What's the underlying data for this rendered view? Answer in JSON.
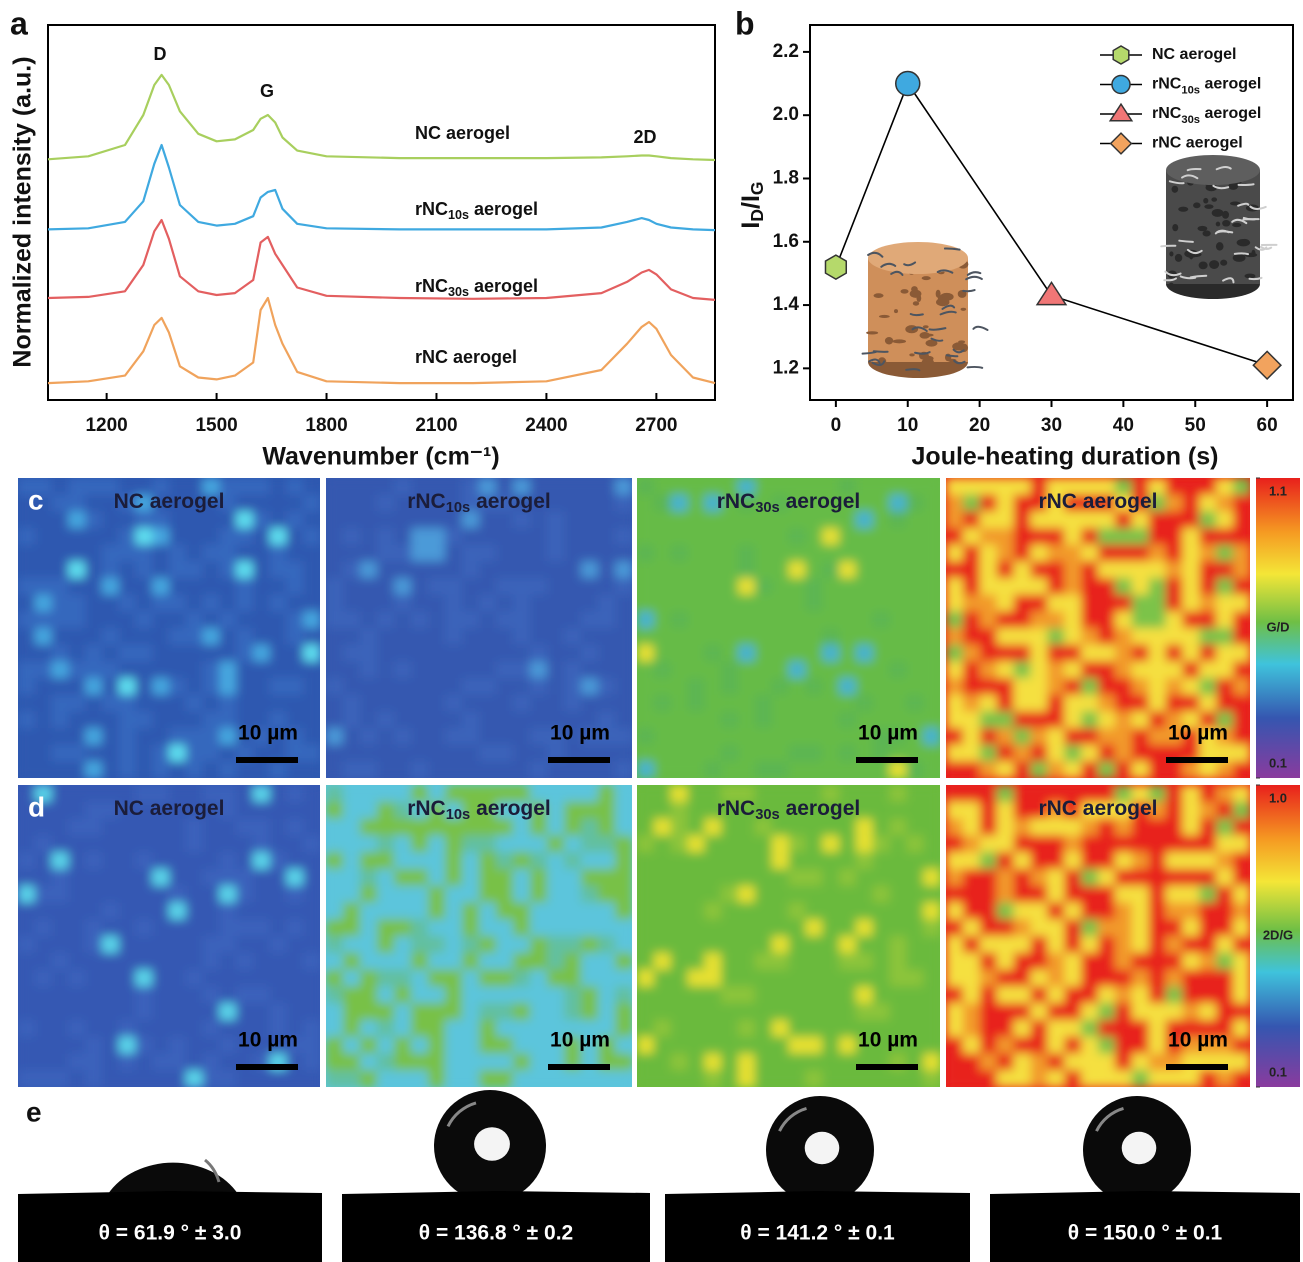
{
  "chart_data": [
    {
      "type": "line",
      "label": "a",
      "x_label": "Wavenumber (cm⁻¹)",
      "y_label": "Normalized intensity (a.u.)",
      "x": [
        1040,
        1150,
        1250,
        1300,
        1330,
        1350,
        1370,
        1400,
        1450,
        1500,
        1550,
        1600,
        1620,
        1640,
        1660,
        1680,
        1720,
        1800,
        2000,
        2200,
        2400,
        2550,
        2620,
        2660,
        2680,
        2700,
        2740,
        2800,
        2860
      ],
      "series": [
        {
          "name": "NC aerogel",
          "color": "#a8cf5e",
          "values": [
            6.42,
            6.5,
            6.8,
            7.6,
            8.4,
            8.67,
            8.4,
            7.7,
            7.1,
            6.9,
            6.95,
            7.2,
            7.5,
            7.6,
            7.4,
            7.0,
            6.65,
            6.5,
            6.45,
            6.45,
            6.45,
            6.47,
            6.5,
            6.52,
            6.52,
            6.5,
            6.45,
            6.42,
            6.4
          ]
        },
        {
          "name": "rNC10s aerogel",
          "color": "#3fa9e0",
          "values": [
            4.55,
            4.58,
            4.75,
            5.3,
            6.3,
            6.8,
            6.2,
            5.2,
            4.75,
            4.65,
            4.7,
            4.9,
            5.4,
            5.55,
            5.6,
            5.1,
            4.7,
            4.58,
            4.55,
            4.55,
            4.55,
            4.6,
            4.75,
            4.85,
            4.8,
            4.7,
            4.6,
            4.55,
            4.53
          ]
        },
        {
          "name": "rNC30s aerogel",
          "color": "#e35f60",
          "values": [
            2.72,
            2.75,
            2.9,
            3.6,
            4.5,
            4.8,
            4.3,
            3.3,
            2.9,
            2.8,
            2.85,
            3.2,
            4.2,
            4.35,
            3.9,
            3.6,
            3.0,
            2.78,
            2.72,
            2.7,
            2.72,
            2.85,
            3.15,
            3.4,
            3.47,
            3.35,
            2.95,
            2.72,
            2.67
          ]
        },
        {
          "name": "rNC aerogel",
          "color": "#f0a35c",
          "values": [
            0.45,
            0.5,
            0.65,
            1.3,
            2.0,
            2.19,
            1.8,
            0.9,
            0.6,
            0.55,
            0.65,
            1.0,
            2.4,
            2.72,
            2.0,
            1.5,
            0.75,
            0.5,
            0.45,
            0.45,
            0.5,
            0.8,
            1.5,
            1.95,
            2.08,
            1.9,
            1.2,
            0.6,
            0.45
          ]
        }
      ],
      "annotations": [
        "D",
        "G",
        "2D"
      ],
      "xlim": [
        1040,
        2860
      ],
      "ylim": [
        0,
        10
      ],
      "xticks": [
        1200,
        1500,
        1800,
        2100,
        2400,
        2700
      ]
    },
    {
      "type": "line",
      "label": "b",
      "x_label": "Joule-heating duration (s)",
      "y_label": "ID/IG",
      "x": [
        0,
        10,
        30,
        60
      ],
      "values": [
        1.52,
        2.1,
        1.43,
        1.21
      ],
      "point_names": [
        "NC aerogel",
        "rNC10s aerogel",
        "rNC30s aerogel",
        "rNC aerogel"
      ],
      "point_colors": [
        "#b5d96b",
        "#3fa9e0",
        "#f07676",
        "#f2a35e"
      ],
      "markers": [
        "hexagon",
        "circle",
        "triangle",
        "diamond"
      ],
      "line_color": "#000000",
      "xlim": [
        -3.6,
        63.6
      ],
      "ylim": [
        1.1,
        2.285
      ],
      "xticks": [
        0,
        10,
        20,
        30,
        40,
        50,
        60
      ],
      "yticks": [
        1.2,
        1.4,
        1.6,
        1.8,
        {
          "value": 2,
          "label": "2.0"
        },
        2.2
      ]
    }
  ],
  "maps": [
    {
      "label": "c",
      "titles": [
        "NC aerogel",
        "rNC10s aerogel",
        "rNC30s aerogel",
        "rNC aerogel"
      ],
      "scale_bar": "10 µm",
      "colorbar": {
        "label": "G/D",
        "lim": [
          0.1,
          1.1
        ],
        "ticks": [
          0.1,
          1.1
        ]
      }
    },
    {
      "label": "d",
      "titles": [
        "NC aerogel",
        "rNC10s aerogel",
        "rNC30s aerogel",
        "rNC aerogel"
      ],
      "scale_bar": "10 µm",
      "colorbar": {
        "label": "2D/G",
        "lim": [
          0.1,
          1.0
        ],
        "ticks": [
          0.1,
          {
            "value": 1,
            "label": "1.0"
          }
        ]
      }
    }
  ],
  "contact_angle": {
    "label": "e",
    "measurements": [
      "θ = 61.9 ° ± 3.0",
      "θ = 136.8 ° ± 0.2",
      "θ = 141.2 ° ± 0.1",
      "θ = 150.0 ° ± 0.1"
    ]
  }
}
